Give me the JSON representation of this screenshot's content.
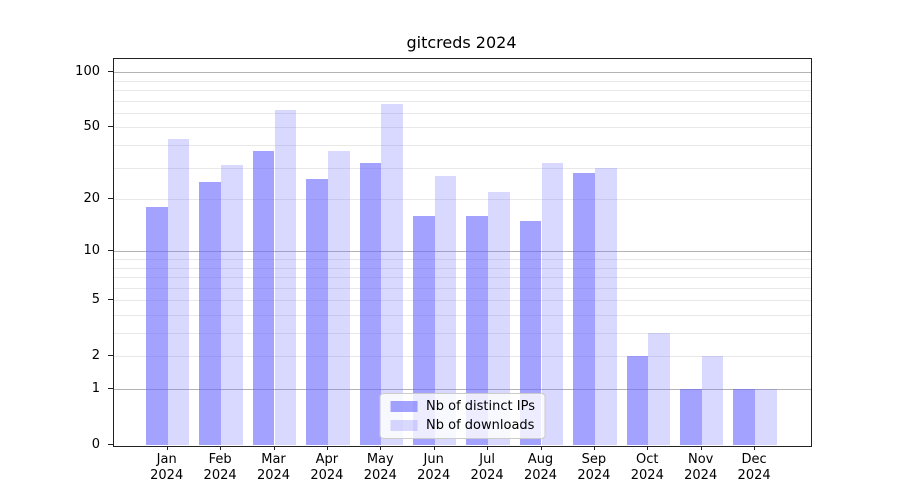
{
  "title": "gitcreds 2024",
  "chart_data": {
    "type": "bar",
    "title": "gitcreds 2024",
    "categories": [
      "Jan",
      "Feb",
      "Mar",
      "Apr",
      "May",
      "Jun",
      "Jul",
      "Aug",
      "Sep",
      "Oct",
      "Nov",
      "Dec"
    ],
    "category_year": "2024",
    "series": [
      {
        "name": "Nb of distinct IPs",
        "color": "rgba(102,102,255,0.6)",
        "values": [
          18,
          25,
          37,
          26,
          32,
          16,
          16,
          15,
          28,
          2,
          1,
          1
        ]
      },
      {
        "name": "Nb of downloads",
        "color": "rgba(102,102,255,0.25)",
        "values": [
          43,
          31,
          62,
          37,
          67,
          27,
          22,
          32,
          30,
          3,
          2,
          1
        ]
      }
    ],
    "yscale": "log1p",
    "ylim": [
      0,
      118
    ],
    "ytick_labels": [
      "0",
      "1",
      "2",
      "5",
      "10",
      "20",
      "50",
      "100"
    ],
    "ytick_values": [
      0,
      1,
      2,
      5,
      10,
      20,
      50,
      100
    ],
    "grid_major_values": [
      1,
      10,
      100
    ],
    "grid_minor_values": [
      2,
      3,
      4,
      5,
      6,
      7,
      8,
      9,
      20,
      30,
      40,
      50,
      60,
      70,
      80,
      90
    ],
    "grid": "on",
    "legend_position": "lower center inside",
    "xlabel": "",
    "ylabel": ""
  },
  "colors": {
    "bar_dark": "rgba(102,102,255,0.6)",
    "bar_light": "rgba(102,102,255,0.25)",
    "grid_minor": "#e8e8e8",
    "grid_major": "#b4b4b4",
    "spine": "#222222",
    "legend_border": "#cccccc",
    "background": "#ffffff"
  }
}
